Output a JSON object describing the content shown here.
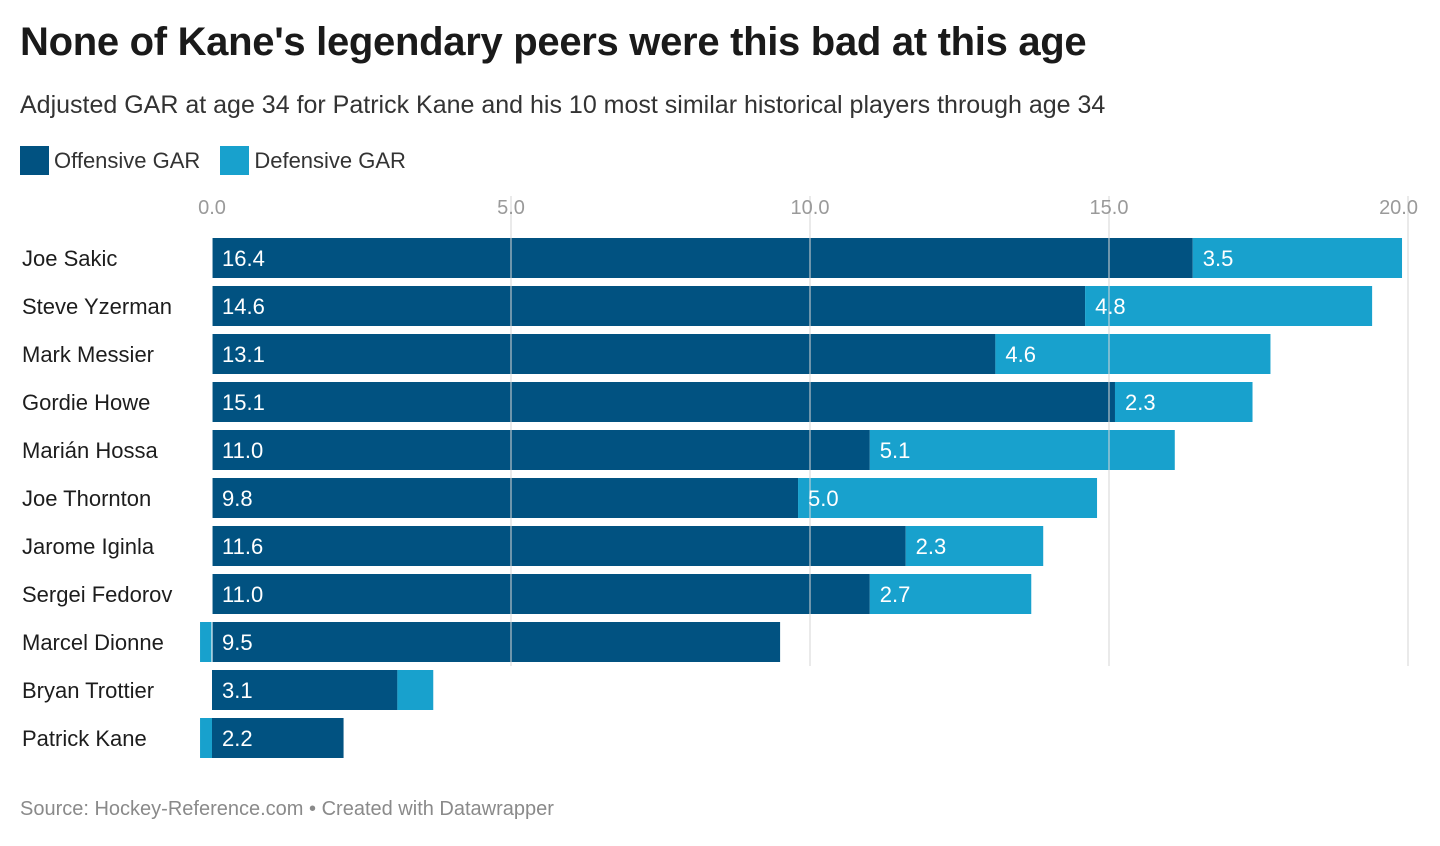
{
  "title": "None of Kane's legendary peers were this bad at this age",
  "subtitle": "Adjusted GAR at age 34 for Patrick Kane and his 10 most similar historical players through age 34",
  "legend": {
    "offensive_label": "Offensive GAR",
    "defensive_label": "Defensive GAR"
  },
  "colors": {
    "offensive": "#015281",
    "defensive": "#18a1cd",
    "grid": "#d6d6d6",
    "text": "#1d1d1d",
    "axis_text": "#9a9a9a"
  },
  "footer": {
    "source": "Source: Hockey-Reference.com",
    "separator": "•",
    "credit": "Created with Datawrapper"
  },
  "chart_data": {
    "type": "bar",
    "orientation": "horizontal",
    "stacked": true,
    "categories": [
      "Joe Sakic",
      "Steve Yzerman",
      "Mark Messier",
      "Gordie Howe",
      "Marián Hossa",
      "Joe Thornton",
      "Jarome Iginla",
      "Sergei Fedorov",
      "Marcel Dionne",
      "Bryan Trottier",
      "Patrick Kane"
    ],
    "series": [
      {
        "name": "Offensive GAR",
        "values": [
          16.4,
          14.6,
          13.1,
          15.1,
          11.0,
          9.8,
          11.6,
          11.0,
          9.5,
          3.1,
          2.2
        ],
        "labels": [
          "16.4",
          "14.6",
          "13.1",
          "15.1",
          "11.0",
          "9.8",
          "11.6",
          "11.0",
          "9.5",
          "3.1",
          "2.2"
        ]
      },
      {
        "name": "Defensive GAR",
        "values": [
          3.5,
          4.8,
          4.6,
          2.3,
          5.1,
          5.0,
          2.3,
          2.7,
          -0.2,
          0.6,
          -0.2
        ],
        "labels": [
          "3.5",
          "4.8",
          "4.6",
          "2.3",
          "5.1",
          "5.0",
          "2.3",
          "2.7",
          "",
          "",
          ""
        ]
      }
    ],
    "xlim": [
      0,
      20
    ],
    "xticks": [
      "0.0",
      "5.0",
      "10.0",
      "15.0",
      "20.0"
    ],
    "grid": true,
    "axis_position": "top",
    "legend_position": "top-left"
  }
}
